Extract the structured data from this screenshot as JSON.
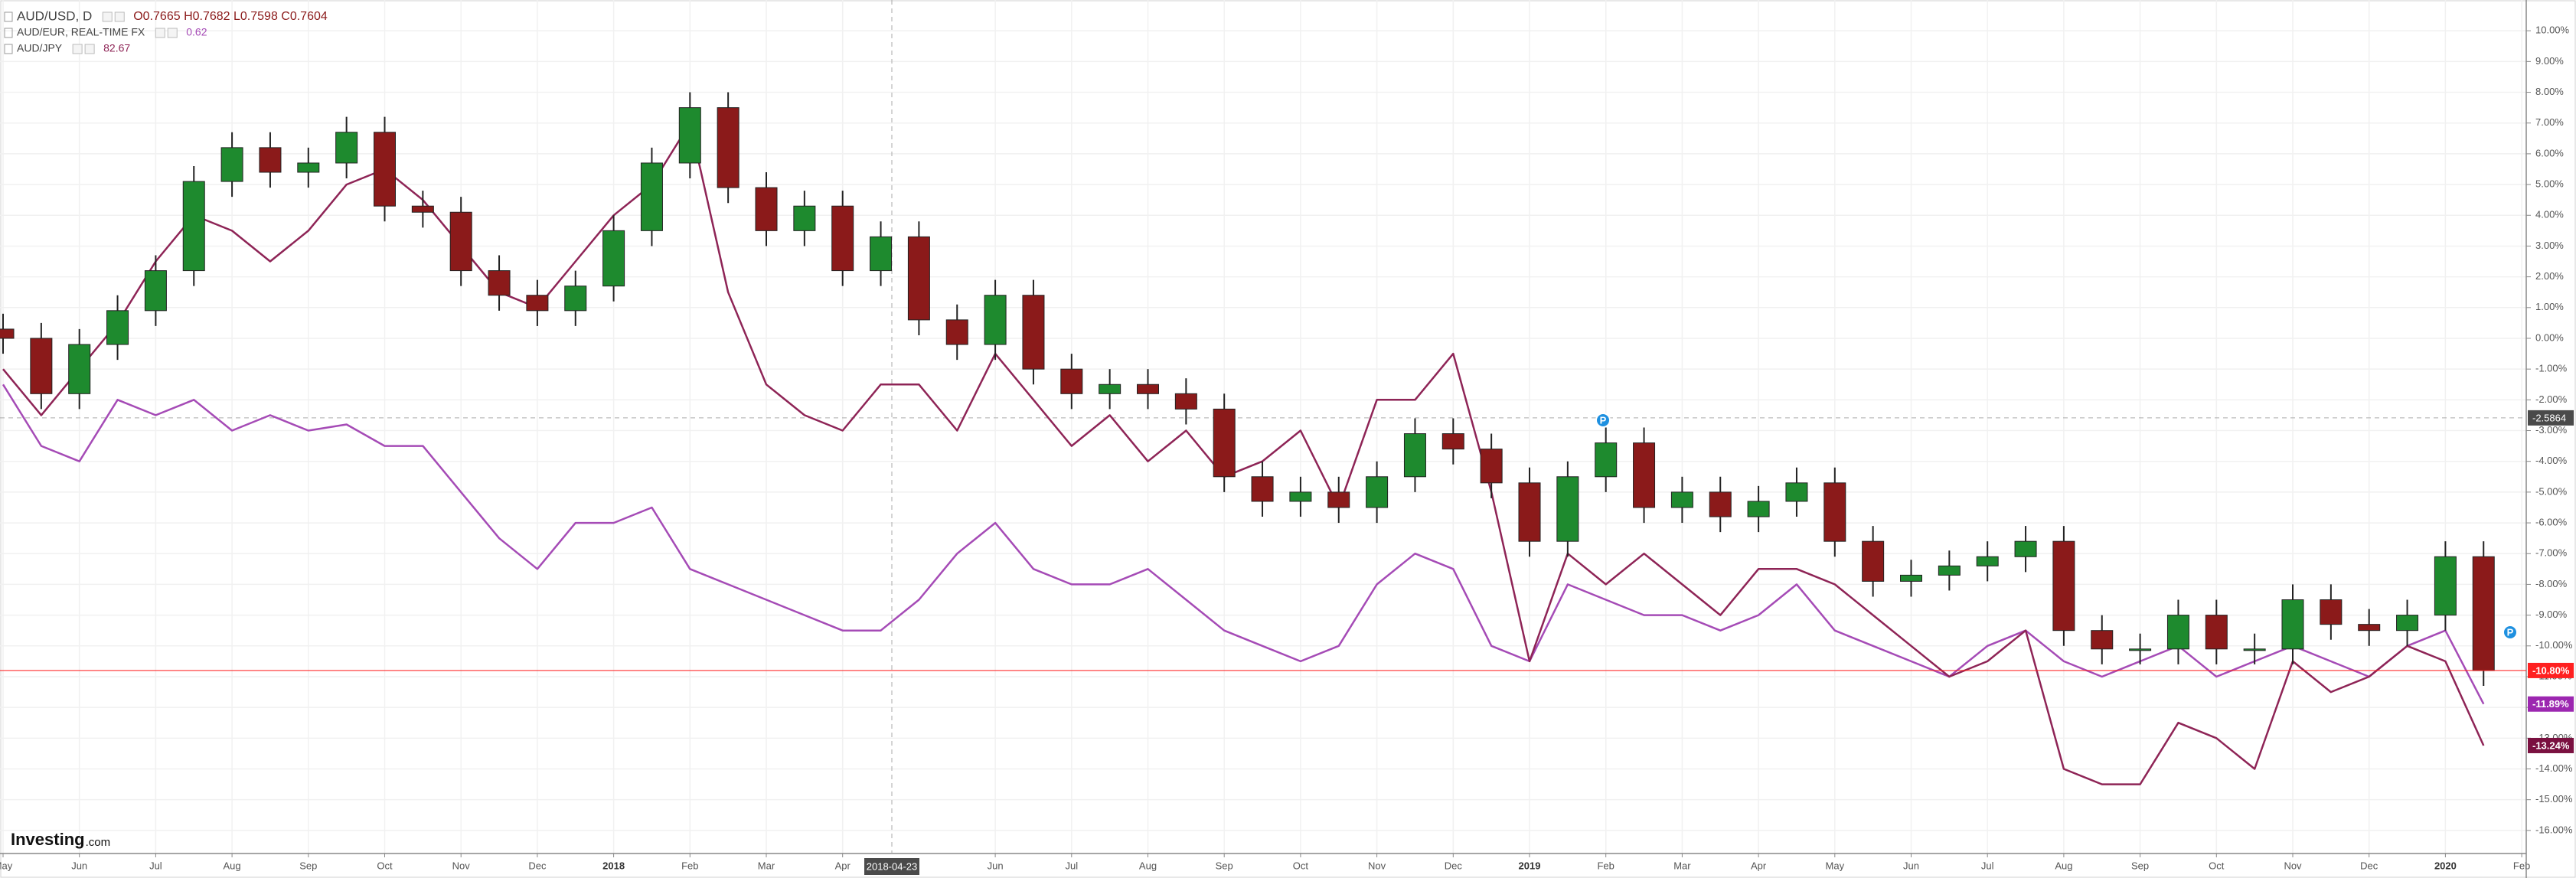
{
  "chart_data": {
    "type": "candlestick",
    "grid": true,
    "ylim": [
      -16.75,
      11
    ],
    "yticks": [
      {
        "value": 10,
        "label": "10.00%"
      },
      {
        "value": 9,
        "label": "9.00%"
      },
      {
        "value": 8,
        "label": "8.00%"
      },
      {
        "value": 7,
        "label": "7.00%"
      },
      {
        "value": 6,
        "label": "6.00%"
      },
      {
        "value": 5,
        "label": "5.00%"
      },
      {
        "value": 4,
        "label": "4.00%"
      },
      {
        "value": 3,
        "label": "3.00%"
      },
      {
        "value": 2,
        "label": "2.00%"
      },
      {
        "value": 1,
        "label": "1.00%"
      },
      {
        "value": 0,
        "label": "0.00%"
      },
      {
        "value": -1,
        "label": "-1.00%"
      },
      {
        "value": -2,
        "label": "-2.00%"
      },
      {
        "value": -3,
        "label": "-3.00%"
      },
      {
        "value": -4,
        "label": "-4.00%"
      },
      {
        "value": -5,
        "label": "-5.00%"
      },
      {
        "value": -6,
        "label": "-6.00%"
      },
      {
        "value": -7,
        "label": "-7.00%"
      },
      {
        "value": -8,
        "label": "-8.00%"
      },
      {
        "value": -9,
        "label": "-9.00%"
      },
      {
        "value": -10,
        "label": "-10.00%"
      },
      {
        "value": -11,
        "label": "-11.00%"
      },
      {
        "value": -12,
        "label": "-12.00%"
      },
      {
        "value": -13,
        "label": "-13.00%"
      },
      {
        "value": -14,
        "label": "-14.00%"
      },
      {
        "value": -15,
        "label": "-15.00%"
      },
      {
        "value": -16,
        "label": "-16.00%"
      }
    ],
    "categories": [
      "May",
      null,
      "Jun",
      null,
      "Jul",
      null,
      "Aug",
      null,
      "Sep",
      null,
      "Oct",
      null,
      "Nov",
      null,
      "Dec",
      null,
      "2018",
      null,
      "Feb",
      null,
      "Mar",
      null,
      "Apr",
      null,
      null,
      null,
      "Jun",
      null,
      "Jul",
      null,
      "Aug",
      null,
      "Sep",
      null,
      "Oct",
      null,
      "Nov",
      null,
      "Dec",
      null,
      "2019",
      null,
      "Feb",
      null,
      "Mar",
      null,
      "Apr",
      null,
      "May",
      null,
      "Jun",
      null,
      "Jul",
      null,
      "Aug",
      null,
      "Sep",
      null,
      "Oct",
      null,
      "Nov",
      null,
      "Dec",
      null,
      "2020",
      null,
      "Feb"
    ],
    "series": [
      {
        "name": "AUD/USD, D",
        "type": "candlestick",
        "up_color": "#1e8a2e",
        "down_color": "#8b1a1a",
        "legend_label": "O0.7665 H0.7682 L0.7598 C0.7604",
        "legend_color": "#8b1a1a",
        "last_label": "-10.80%",
        "tag_color": "#ff2020",
        "open": [
          0.3,
          0,
          -1.8,
          -0.2,
          0.9,
          2.2,
          5.1,
          6.2,
          5.4,
          5.7,
          6.7,
          4.3,
          4.1,
          2.2,
          1.4,
          0.9,
          1.7,
          3.5,
          5.7,
          7.5,
          4.9,
          3.5,
          4.3,
          2.2,
          3.3,
          0.6,
          -0.2,
          1.4,
          -1.0,
          -1.8,
          -1.5,
          -1.8,
          -2.3,
          -4.5,
          -5.3,
          -5.0,
          -5.5,
          -4.5,
          -3.1,
          -3.6,
          -4.7,
          -6.6,
          -4.5,
          -3.4,
          -5.5,
          -5.0,
          -5.8,
          -5.3,
          -4.7,
          -6.6,
          -7.9,
          -7.7,
          -7.4,
          -7.1,
          -6.6,
          -9.5,
          -10.1,
          -10.1,
          -9.0,
          -10.1,
          -10.1,
          -8.5,
          -9.3,
          -9.5,
          -9.0,
          -7.1,
          null
        ],
        "high": [
          0.8,
          0.5,
          0.3,
          1.4,
          2.7,
          5.6,
          6.7,
          6.7,
          6.2,
          7.2,
          7.2,
          4.8,
          4.6,
          2.7,
          1.9,
          2.2,
          4.0,
          6.2,
          8.0,
          8.0,
          5.4,
          4.8,
          4.8,
          3.8,
          3.8,
          1.1,
          1.9,
          1.9,
          -0.5,
          -1.0,
          -1.0,
          -1.3,
          -1.8,
          -4.0,
          -4.5,
          -4.5,
          -4.0,
          -2.6,
          -2.6,
          -3.1,
          -4.2,
          -4.0,
          -2.9,
          -2.9,
          -4.5,
          -4.5,
          -4.8,
          -4.2,
          -4.2,
          -6.1,
          -7.2,
          -6.9,
          -6.6,
          -6.1,
          -6.1,
          -9.0,
          -9.6,
          -8.5,
          -8.5,
          -9.6,
          -8.0,
          -8.0,
          -8.8,
          -8.5,
          -6.6,
          -6.6,
          null
        ],
        "low": [
          -0.5,
          -2.3,
          -2.3,
          -0.7,
          0.4,
          1.7,
          4.6,
          4.9,
          4.9,
          5.2,
          3.8,
          3.6,
          1.7,
          0.9,
          0.4,
          0.4,
          1.2,
          3.0,
          5.2,
          4.4,
          3.0,
          3.0,
          1.7,
          1.7,
          0.1,
          -0.7,
          -0.7,
          -1.5,
          -2.3,
          -2.3,
          -2.3,
          -2.8,
          -5.0,
          -5.8,
          -5.8,
          -6.0,
          -6.0,
          -5.0,
          -4.1,
          -5.2,
          -7.1,
          -7.1,
          -5.0,
          -6.0,
          -6.0,
          -6.3,
          -6.3,
          -5.8,
          -7.1,
          -8.4,
          -8.4,
          -8.2,
          -7.9,
          -7.6,
          -10.0,
          -10.6,
          -10.6,
          -10.6,
          -10.6,
          -10.6,
          -10.6,
          -9.8,
          -10.0,
          -10.0,
          -9.5,
          -11.3,
          null
        ],
        "close": [
          0,
          -1.8,
          -0.2,
          0.9,
          2.2,
          5.1,
          6.2,
          5.4,
          5.7,
          6.7,
          4.3,
          4.1,
          2.2,
          1.4,
          0.9,
          1.7,
          3.5,
          5.7,
          7.5,
          4.9,
          3.5,
          4.3,
          2.2,
          3.3,
          0.6,
          -0.2,
          1.4,
          -1.0,
          -1.8,
          -1.5,
          -1.8,
          -2.3,
          -4.5,
          -5.3,
          -5.0,
          -5.5,
          -4.5,
          -3.1,
          -3.6,
          -4.7,
          -6.6,
          -4.5,
          -3.4,
          -5.5,
          -5.0,
          -5.8,
          -5.3,
          -4.7,
          -6.6,
          -7.9,
          -7.7,
          -7.4,
          -7.1,
          -6.6,
          -9.5,
          -10.1,
          -10.1,
          -9.0,
          -10.1,
          -10.1,
          -8.5,
          -9.3,
          -9.5,
          -9.0,
          -7.1,
          -10.8,
          null
        ]
      },
      {
        "name": "AUD/EUR, REAL-TIME FX",
        "type": "line",
        "color": "#a54bb6",
        "legend_label": "0.62",
        "legend_color": "#a54bb6",
        "last_label": "-11.89%",
        "tag_color": "#9c27b0",
        "values": [
          -1.5,
          -3.5,
          -4.0,
          -2.0,
          -2.5,
          -2.0,
          -3.0,
          -2.5,
          -3.0,
          -2.8,
          -3.5,
          -3.5,
          -5.0,
          -6.5,
          -7.5,
          -6.0,
          -6.0,
          -5.5,
          -7.5,
          -8.0,
          -8.5,
          -9.0,
          -9.5,
          -9.5,
          -8.5,
          -7.0,
          -6.0,
          -7.5,
          -8.0,
          -8.0,
          -7.5,
          -8.5,
          -9.5,
          -10.0,
          -10.5,
          -10.0,
          -8.0,
          -7.0,
          -7.5,
          -10.0,
          -10.5,
          -8.0,
          -8.5,
          -9.0,
          -9.0,
          -9.5,
          -9.0,
          -8.0,
          -9.5,
          -10.0,
          -10.5,
          -11.0,
          -10.0,
          -9.5,
          -10.5,
          -11.0,
          -10.5,
          -10.0,
          -11.0,
          -10.5,
          -10.0,
          -10.5,
          -11.0,
          -10.0,
          -9.5,
          -11.89,
          null
        ]
      },
      {
        "name": "AUD/JPY",
        "type": "line",
        "color": "#8e2456",
        "legend_label": "82.67",
        "legend_color": "#8e2456",
        "last_label": "-13.24%",
        "tag_color": "#7a1040",
        "values": [
          -1.0,
          -2.5,
          -1.0,
          0.5,
          2.5,
          4.0,
          3.5,
          2.5,
          3.5,
          5.0,
          5.5,
          4.5,
          3.0,
          1.5,
          1.0,
          2.5,
          4.0,
          5.0,
          7.0,
          1.5,
          -1.5,
          -2.5,
          -3.0,
          -1.5,
          -1.5,
          -3.0,
          -0.5,
          -2.0,
          -3.5,
          -2.5,
          -4.0,
          -3.0,
          -4.5,
          -4.0,
          -3.0,
          -5.5,
          -2.0,
          -2.0,
          -0.5,
          -5.0,
          -10.5,
          -7.0,
          -8.0,
          -7.0,
          -8.0,
          -9.0,
          -7.5,
          -7.5,
          -8.0,
          -9.0,
          -10.0,
          -11.0,
          -10.5,
          -9.5,
          -14.0,
          -14.5,
          -14.5,
          -12.5,
          -13.0,
          -14.0,
          -10.5,
          -11.5,
          -11.0,
          -10.0,
          -10.5,
          -13.24,
          null
        ]
      }
    ],
    "crosshair": {
      "x_label": "2018-04-23",
      "y_value": -2.5864
    },
    "brand": {
      "name": "Investing",
      "suffix": ".com"
    }
  }
}
